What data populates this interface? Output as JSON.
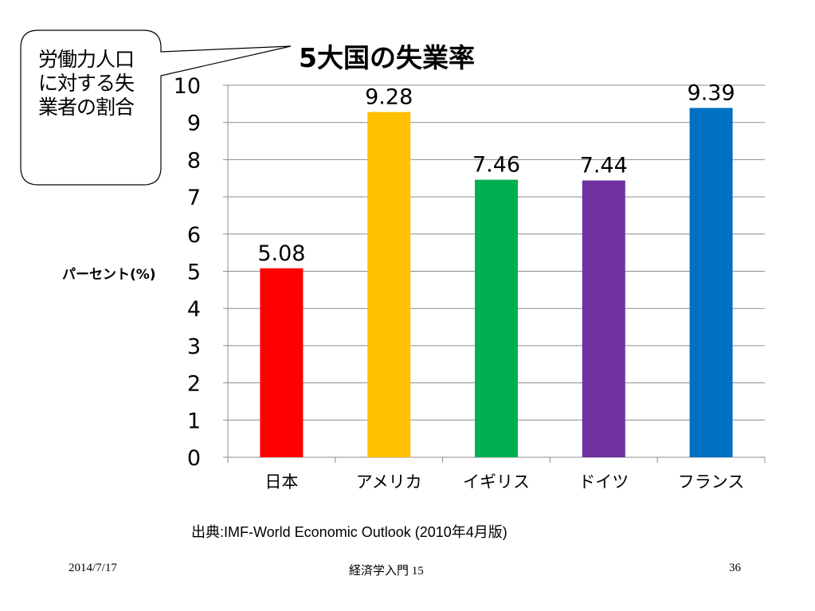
{
  "slide": {
    "title": "5大国の失業率",
    "callout": "労働力人口に対する失業者の割合",
    "ylabel": "パーセント(%)",
    "source": "出典:IMF-World Economic Outlook (2010年4月版)",
    "footer_date": "2014/7/17",
    "footer_course": "経済学入門 15",
    "footer_page": "36"
  },
  "chart_data": {
    "type": "bar",
    "title": "5大国の失業率",
    "ylabel": "パーセント(%)",
    "xlabel": "",
    "categories": [
      "日本",
      "アメリカ",
      "イギリス",
      "ドイツ",
      "フランス"
    ],
    "values": [
      5.08,
      9.28,
      7.46,
      7.44,
      9.39
    ],
    "value_labels": [
      "5.08",
      "9.28",
      "7.46",
      "7.44",
      "9.39"
    ],
    "colors": [
      "#ff0000",
      "#ffc000",
      "#00b050",
      "#7030a0",
      "#0070c0"
    ],
    "ylim": [
      0,
      10
    ],
    "yticks": [
      "0",
      "1",
      "2",
      "3",
      "4",
      "5",
      "6",
      "7",
      "8",
      "9",
      "10"
    ],
    "grid": true,
    "legend": "none"
  }
}
